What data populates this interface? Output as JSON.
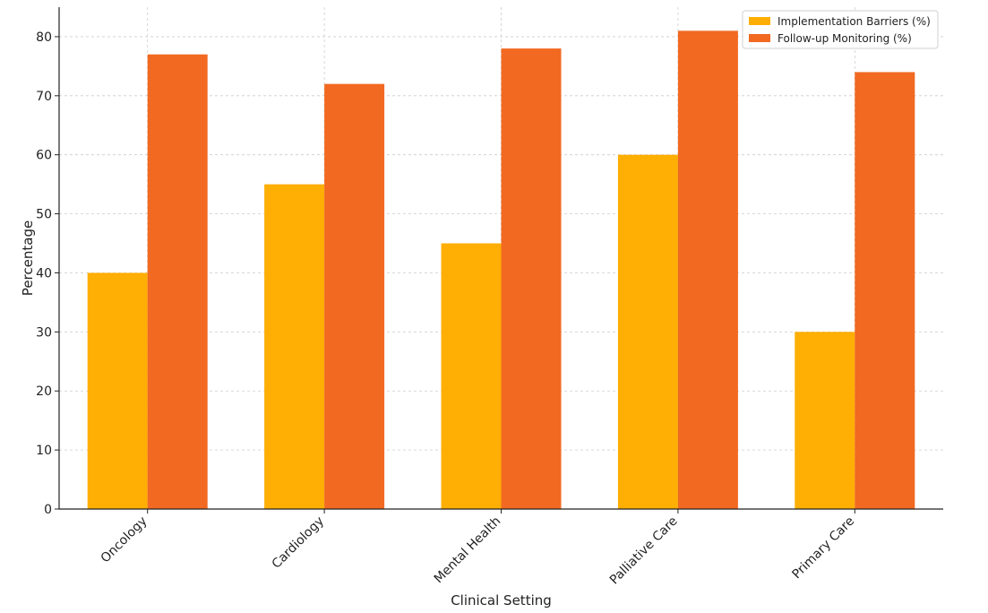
{
  "chart_data": {
    "type": "bar",
    "title": "",
    "xlabel": "Clinical Setting",
    "ylabel": "Percentage",
    "categories": [
      "Oncology",
      "Cardiology",
      "Mental Health",
      "Palliative Care",
      "Primary Care"
    ],
    "series": [
      {
        "name": "Implementation Barriers (%)",
        "values": [
          40,
          55,
          45,
          60,
          30
        ],
        "color": "#FFAE03"
      },
      {
        "name": "Follow-up Monitoring (%)",
        "values": [
          77,
          72,
          78,
          81,
          74
        ],
        "color": "#F26921"
      }
    ],
    "ylim": [
      0,
      85
    ],
    "yticks": [
      0,
      10,
      20,
      30,
      40,
      50,
      60,
      70,
      80
    ],
    "grid": true,
    "legend_position": "top-right"
  }
}
